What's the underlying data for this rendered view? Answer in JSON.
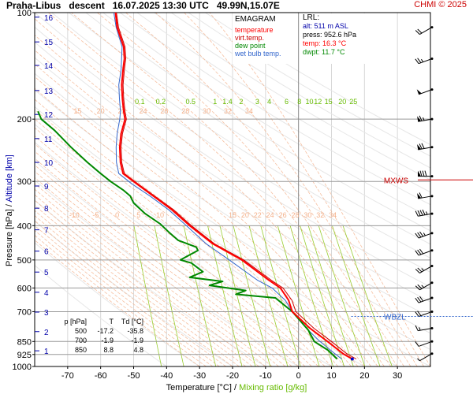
{
  "header": {
    "station": "Praha-Libus",
    "kind": "descent",
    "datetime": "16.07.2025 13:30 UTC",
    "position": "49.99N,15.07E",
    "credit": "CHMI © 2025"
  },
  "legend": {
    "title": "EMAGRAM",
    "items": [
      {
        "label": "temperature",
        "color": "#ff0000"
      },
      {
        "label": "virt.temp.",
        "color": "#cc0000"
      },
      {
        "label": "dew point",
        "color": "#008800"
      },
      {
        "label": "wet bulb temp.",
        "color": "#3366cc"
      }
    ]
  },
  "lrl": {
    "title": "LRL:",
    "alt": "alt: 511 m ASL",
    "press": "press: 952.6 hPa",
    "temp": "temp: 16.3 °C",
    "dwpt": "dwpt: 11.7 °C"
  },
  "summary_table": {
    "headers": [
      "p [hPa]",
      "T",
      "Td [°C]"
    ],
    "rows": [
      [
        "500",
        "-17.2",
        "-35.8"
      ],
      [
        "700",
        "-1.9",
        "-1.9"
      ],
      [
        "850",
        "8.8",
        "4.8"
      ]
    ]
  },
  "markers": {
    "mxws": "MXWS",
    "wbzl": "WBZL"
  },
  "axis_titles": {
    "x_temp": "Temperature [°C]",
    "x_sep": "  /  ",
    "x_mix": "Mixing ratio [g/kg]",
    "y_left": "Pressure [hPa]",
    "y_sep": " / ",
    "y_right": "Altitude [km]"
  },
  "colors": {
    "temperature": "#ff0000",
    "virt_temp": "#cc0000",
    "dew_point": "#008800",
    "wet_bulb": "#3366cc",
    "altitude_axis": "#0000aa",
    "mixing_ratio": "#66bb00",
    "adiabat": "#f4b08a",
    "credit": "#cc0000"
  },
  "chart_data": {
    "type": "line",
    "title": "Praha-Libus descent 16.07.2025 13:30 UTC 49.99N,15.07E",
    "xlabel": "Temperature [°C] / Mixing ratio [g/kg]",
    "ylabel": "Pressure [hPa] / Altitude [km]",
    "xlim": [
      -80,
      40
    ],
    "ylim": [
      1000,
      100
    ],
    "y_scale": "log",
    "x_ticks": [
      -70,
      -60,
      -50,
      -40,
      -30,
      -20,
      -10,
      0,
      10,
      20,
      30
    ],
    "pressure_ticks": [
      100,
      200,
      300,
      400,
      500,
      600,
      700,
      850,
      925,
      1000
    ],
    "altitude_ticks": [
      {
        "km": 1,
        "p": 903
      },
      {
        "km": 2,
        "p": 797
      },
      {
        "km": 3,
        "p": 702
      },
      {
        "km": 4,
        "p": 617
      },
      {
        "km": 5,
        "p": 541
      },
      {
        "km": 6,
        "p": 472
      },
      {
        "km": 7,
        "p": 411
      },
      {
        "km": 8,
        "p": 357
      },
      {
        "km": 9,
        "p": 309
      },
      {
        "km": 10,
        "p": 265
      },
      {
        "km": 11,
        "p": 227
      },
      {
        "km": 12,
        "p": 194
      },
      {
        "km": 13,
        "p": 166
      },
      {
        "km": 14,
        "p": 141
      },
      {
        "km": 15,
        "p": 121
      },
      {
        "km": 16,
        "p": 103
      }
    ],
    "mixing_ratio_labels": [
      "0.1",
      "0.2",
      "0.5",
      "1",
      "1.4",
      "2",
      "3",
      "4",
      "6",
      "8",
      "10",
      "12",
      "15",
      "20",
      "25"
    ],
    "adiabat_labels_upper": [
      "15",
      "20",
      "22",
      "24",
      "26",
      "28",
      "30",
      "32",
      "34"
    ],
    "adiabat_labels_lower": [
      "-10",
      "-5",
      "0",
      "5",
      "10",
      "15",
      "20",
      "22",
      "24",
      "26",
      "28",
      "30",
      "32",
      "34"
    ],
    "grid": true,
    "legend_placement": "top-center",
    "series": [
      {
        "name": "temperature",
        "points": [
          [
            -55.5,
            100
          ],
          [
            -55.0,
            110
          ],
          [
            -53.0,
            125
          ],
          [
            -52.8,
            135
          ],
          [
            -53.2,
            145
          ],
          [
            -53.6,
            160
          ],
          [
            -53.4,
            175
          ],
          [
            -53.0,
            190
          ],
          [
            -52.6,
            200
          ],
          [
            -53.8,
            220
          ],
          [
            -54.2,
            240
          ],
          [
            -54.0,
            265
          ],
          [
            -53.2,
            285
          ],
          [
            -49.0,
            305
          ],
          [
            -44.0,
            330
          ],
          [
            -38.5,
            360
          ],
          [
            -33.0,
            400
          ],
          [
            -26.0,
            450
          ],
          [
            -17.2,
            500
          ],
          [
            -9.0,
            570
          ],
          [
            -5.5,
            600
          ],
          [
            -3.0,
            650
          ],
          [
            -1.9,
            700
          ],
          [
            3.5,
            780
          ],
          [
            8.8,
            850
          ],
          [
            13.5,
            920
          ],
          [
            16.3,
            952.6
          ]
        ]
      },
      {
        "name": "virt.temp.",
        "points": [
          [
            -55.2,
            100
          ],
          [
            -54.6,
            110
          ],
          [
            -52.6,
            125
          ],
          [
            -52.4,
            135
          ],
          [
            -52.8,
            145
          ],
          [
            -53.2,
            160
          ],
          [
            -53.0,
            175
          ],
          [
            -52.6,
            190
          ],
          [
            -52.2,
            200
          ],
          [
            -53.4,
            220
          ],
          [
            -53.8,
            240
          ],
          [
            -53.6,
            265
          ],
          [
            -52.8,
            285
          ],
          [
            -48.6,
            305
          ],
          [
            -43.6,
            330
          ],
          [
            -38.0,
            360
          ],
          [
            -32.5,
            400
          ],
          [
            -25.5,
            450
          ],
          [
            -16.6,
            500
          ],
          [
            -8.3,
            570
          ],
          [
            -4.7,
            600
          ],
          [
            -2.0,
            650
          ],
          [
            -0.8,
            700
          ],
          [
            4.7,
            780
          ],
          [
            10.0,
            850
          ],
          [
            14.6,
            920
          ],
          [
            17.5,
            952.6
          ]
        ]
      },
      {
        "name": "dew point",
        "points": [
          [
            -79.0,
            190
          ],
          [
            -78.0,
            200
          ],
          [
            -74.0,
            215
          ],
          [
            -69.0,
            240
          ],
          [
            -64.0,
            265
          ],
          [
            -60.0,
            285
          ],
          [
            -57.0,
            300
          ],
          [
            -53.0,
            318
          ],
          [
            -51.0,
            330
          ],
          [
            -50.0,
            345
          ],
          [
            -46.5,
            370
          ],
          [
            -42.0,
            395
          ],
          [
            -39.0,
            420
          ],
          [
            -36.5,
            440
          ],
          [
            -31.0,
            460
          ],
          [
            -30.5,
            470
          ],
          [
            -35.8,
            500
          ],
          [
            -32.5,
            510
          ],
          [
            -29.0,
            540
          ],
          [
            -33.0,
            560
          ],
          [
            -23.0,
            575
          ],
          [
            -27.0,
            590
          ],
          [
            -16.0,
            610
          ],
          [
            -19.0,
            625
          ],
          [
            -7.0,
            640
          ],
          [
            -1.9,
            700
          ],
          [
            3.0,
            790
          ],
          [
            4.8,
            850
          ],
          [
            9.0,
            900
          ],
          [
            11.7,
            952.6
          ]
        ]
      },
      {
        "name": "wet bulb temp.",
        "points": [
          [
            -56.0,
            100
          ],
          [
            -55.3,
            110
          ],
          [
            -53.5,
            125
          ],
          [
            -53.8,
            145
          ],
          [
            -54.5,
            160
          ],
          [
            -54.3,
            175
          ],
          [
            -54.0,
            190
          ],
          [
            -54.2,
            200
          ],
          [
            -55.0,
            220
          ],
          [
            -55.3,
            240
          ],
          [
            -55.2,
            265
          ],
          [
            -54.5,
            285
          ],
          [
            -50.5,
            305
          ],
          [
            -45.0,
            330
          ],
          [
            -39.5,
            360
          ],
          [
            -34.0,
            400
          ],
          [
            -28.0,
            450
          ],
          [
            -21.0,
            500
          ],
          [
            -12.5,
            570
          ],
          [
            -8.0,
            600
          ],
          [
            -4.0,
            650
          ],
          [
            -1.9,
            700
          ],
          [
            3.0,
            790
          ],
          [
            6.5,
            850
          ],
          [
            11.0,
            920
          ],
          [
            13.1,
            952.6
          ]
        ]
      }
    ],
    "winds": [
      {
        "p": 110,
        "dir": 240,
        "speed": 20
      },
      {
        "p": 135,
        "dir": 250,
        "speed": 25
      },
      {
        "p": 165,
        "dir": 250,
        "speed": 50
      },
      {
        "p": 200,
        "dir": 260,
        "speed": 65
      },
      {
        "p": 240,
        "dir": 260,
        "speed": 70
      },
      {
        "p": 290,
        "dir": 270,
        "speed": 80
      },
      {
        "p": 330,
        "dir": 260,
        "speed": 60
      },
      {
        "p": 370,
        "dir": 260,
        "speed": 45
      },
      {
        "p": 420,
        "dir": 250,
        "speed": 35
      },
      {
        "p": 470,
        "dir": 250,
        "speed": 30
      },
      {
        "p": 520,
        "dir": 240,
        "speed": 25
      },
      {
        "p": 580,
        "dir": 240,
        "speed": 25
      },
      {
        "p": 640,
        "dir": 250,
        "speed": 30
      },
      {
        "p": 700,
        "dir": 250,
        "speed": 20
      },
      {
        "p": 780,
        "dir": 260,
        "speed": 15
      },
      {
        "p": 850,
        "dir": 250,
        "speed": 10
      },
      {
        "p": 920,
        "dir": 240,
        "speed": 5
      }
    ],
    "level_markers": [
      {
        "label": "MXWS",
        "p": 297
      },
      {
        "label": "WBZL",
        "p": 700
      }
    ]
  }
}
